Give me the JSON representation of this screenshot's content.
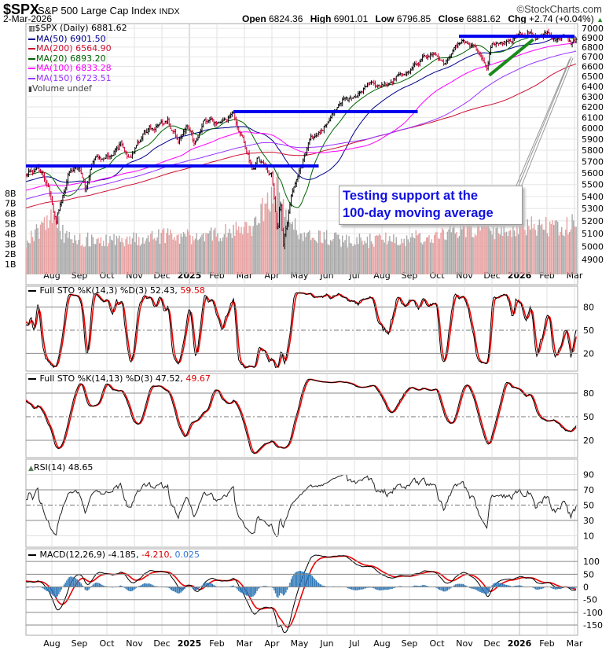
{
  "header": {
    "symbol": "$SPX",
    "name": "S&P 500 Large Cap Index",
    "exchange": "INDX",
    "date": "2-Mar-2026",
    "brand": "©StockCharts.com",
    "open_label": "Open",
    "open": "6824.36",
    "high_label": "High",
    "high": "6901.01",
    "low_label": "Low",
    "low": "6796.85",
    "close_label": "Close",
    "close": "6881.62",
    "chg_label": "Chg",
    "chg": "+2.74 (+0.04%)",
    "chg_icon": "triangle-up-icon"
  },
  "legend": {
    "price": "$SPX (Daily) 6881.62",
    "ma50": "MA(50) 6901.50",
    "ma200": "MA(200) 6564.90",
    "ma20": "MA(20) 6893.20",
    "ma100": "MA(100) 6833.28",
    "ma150": "MA(150) 6723.51",
    "volume": "Volume undef"
  },
  "colors": {
    "ma50": "#00008b",
    "ma200": "#cc1133",
    "ma20": "#006400",
    "ma100": "#ff00ff",
    "ma150": "#9933ff",
    "up": "#000000",
    "down": "#cc0033",
    "annotation": "#1010e0",
    "trendline": "#0000ee",
    "uptrend": "#1a8a1a",
    "hist": "#2e78b8"
  },
  "annotation": {
    "line1": "Testing support at the",
    "line2": "100-day moving average"
  },
  "panels": {
    "sto1": {
      "label": "Full STO %K(14,3) %D(3) 52.43, ",
      "d": "59.58"
    },
    "sto2": {
      "label": "Full STO %K(14,13) %D(3) 47.52, ",
      "d": "49.67"
    },
    "rsi": {
      "label": "RSI(14) 48.65"
    },
    "macd": {
      "label": "MACD(12,26,9) -4.185, ",
      "signal": "-4.210,",
      "hist": " 0.025"
    }
  },
  "chart_data": {
    "type": "ohlc",
    "title": "$SPX S&P 500 Large Cap Index (Daily)",
    "x_start": "Jul 2024",
    "x_end": "2-Mar-2026",
    "month_labels": [
      "Aug",
      "Sep",
      "Oct",
      "Nov",
      "Dec",
      "2025",
      "Feb",
      "Mar",
      "Apr",
      "May",
      "Jun",
      "Jul",
      "Aug",
      "Sep",
      "Oct",
      "Nov",
      "Dec",
      "2026",
      "Feb",
      "Mar"
    ],
    "price_axis": {
      "scale": "log",
      "ylim": [
        4800,
        7050
      ],
      "ticks": [
        4900,
        5000,
        5100,
        5200,
        5300,
        5400,
        5500,
        5600,
        5700,
        5800,
        5900,
        6000,
        6100,
        6200,
        6300,
        6400,
        6500,
        6600,
        6700,
        6800,
        6900,
        7000
      ]
    },
    "volume_axis": {
      "ticks": [
        "1B",
        "2B",
        "3B",
        "4B",
        "5B",
        "6B",
        "7B",
        "8B"
      ]
    },
    "price_anchors_months_since_jul2024": [
      [
        0.06,
        5600
      ],
      [
        0.5,
        5640
      ],
      [
        0.9,
        5460
      ],
      [
        1.15,
        5170
      ],
      [
        1.6,
        5600
      ],
      [
        2.0,
        5650
      ],
      [
        2.2,
        5450
      ],
      [
        2.5,
        5700
      ],
      [
        3.0,
        5750
      ],
      [
        3.5,
        5850
      ],
      [
        3.8,
        5700
      ],
      [
        4.2,
        5900
      ],
      [
        4.5,
        5990
      ],
      [
        5.2,
        6080
      ],
      [
        5.6,
        5890
      ],
      [
        5.9,
        6010
      ],
      [
        6.2,
        5850
      ],
      [
        6.5,
        6060
      ],
      [
        7.1,
        6050
      ],
      [
        7.6,
        6120
      ],
      [
        7.9,
        5920
      ],
      [
        8.3,
        5620
      ],
      [
        8.5,
        5720
      ],
      [
        9.0,
        5580
      ],
      [
        9.2,
        5060
      ],
      [
        9.3,
        5400
      ],
      [
        9.4,
        4990
      ],
      [
        9.7,
        5400
      ],
      [
        10.0,
        5600
      ],
      [
        10.4,
        5900
      ],
      [
        10.7,
        5950
      ],
      [
        11.0,
        6050
      ],
      [
        11.5,
        6250
      ],
      [
        12.0,
        6280
      ],
      [
        12.5,
        6420
      ],
      [
        13.0,
        6400
      ],
      [
        13.5,
        6480
      ],
      [
        14.0,
        6550
      ],
      [
        14.5,
        6680
      ],
      [
        15.0,
        6720
      ],
      [
        15.3,
        6620
      ],
      [
        15.6,
        6760
      ],
      [
        15.9,
        6880
      ],
      [
        16.3,
        6800
      ],
      [
        16.6,
        6680
      ],
      [
        16.8,
        6560
      ],
      [
        17.0,
        6840
      ],
      [
        17.3,
        6870
      ],
      [
        17.6,
        6850
      ],
      [
        18.0,
        6920
      ],
      [
        18.3,
        6960
      ],
      [
        18.6,
        6880
      ],
      [
        19.0,
        6940
      ],
      [
        19.3,
        6860
      ],
      [
        19.6,
        6900
      ],
      [
        19.9,
        6830
      ],
      [
        20.06,
        6881.62
      ]
    ],
    "volume_anchors_billions": [
      [
        0,
        3.2
      ],
      [
        1.1,
        5.5
      ],
      [
        1.5,
        3.5
      ],
      [
        3,
        3.2
      ],
      [
        5.5,
        3.8
      ],
      [
        6.5,
        3.6
      ],
      [
        8.3,
        4.5
      ],
      [
        9.2,
        8.5
      ],
      [
        9.5,
        6
      ],
      [
        10,
        3.8
      ],
      [
        12,
        3.2
      ],
      [
        14,
        3.4
      ],
      [
        15,
        3.8
      ],
      [
        16.5,
        4.6
      ],
      [
        17,
        4.2
      ],
      [
        18.5,
        4.8
      ],
      [
        19.5,
        4.4
      ],
      [
        20.06,
        5.2
      ]
    ],
    "moving_averages": [
      50,
      200,
      20,
      100,
      150
    ],
    "horizontal_lines": [
      {
        "price": 6915,
        "from": 15.8,
        "to": 20.0
      },
      {
        "price": 6155,
        "from": 7.6,
        "to": 14.3
      },
      {
        "price": 5660,
        "from": 0.06,
        "to": 10.7
      }
    ],
    "uptrend_line": {
      "from": [
        16.9,
        6510
      ],
      "to": [
        18.5,
        6880
      ]
    },
    "sto_levels": [
      20,
      50,
      80
    ],
    "rsi_levels": [
      10,
      30,
      50,
      70,
      90
    ],
    "macd_ticks": [
      -150,
      -100,
      -50,
      0,
      50,
      100
    ]
  }
}
